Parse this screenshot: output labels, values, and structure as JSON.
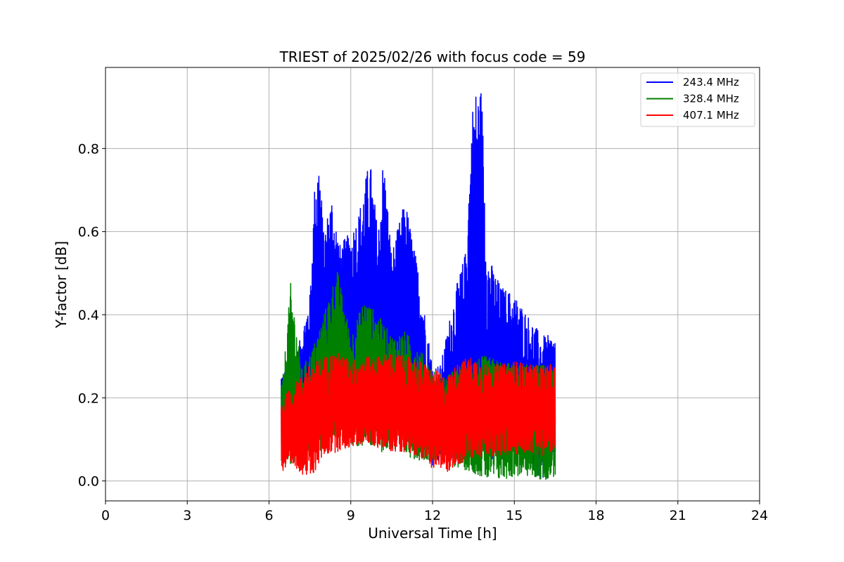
{
  "chart_data": {
    "type": "line",
    "title": "TRIEST of 2025/02/26 with focus code = 59",
    "xlabel": "Universal Time [h]",
    "ylabel": "Y-factor [dB]",
    "xlim": [
      0,
      24
    ],
    "ylim": [
      -0.048,
      0.995
    ],
    "xticks": [
      0,
      3,
      6,
      9,
      12,
      15,
      18,
      21,
      24
    ],
    "yticks": [
      0.0,
      0.2,
      0.4,
      0.6,
      0.8
    ],
    "ytick_labels": [
      "0.0",
      "0.2",
      "0.4",
      "0.6",
      "0.8"
    ],
    "grid": true,
    "legend_position": "top-right",
    "series": [
      {
        "name": "243.4 MHz",
        "color": "#0000ff",
        "x_range": [
          6.45,
          16.5
        ],
        "envelope_x": [
          6.5,
          7.0,
          7.5,
          7.7,
          7.85,
          8.0,
          8.3,
          8.6,
          9.0,
          9.3,
          9.7,
          10.0,
          10.2,
          10.5,
          11.0,
          11.5,
          12.0,
          12.3,
          12.8,
          13.2,
          13.5,
          13.8,
          14.0,
          14.5,
          15.0,
          15.5,
          16.0,
          16.5
        ],
        "max_values": [
          0.26,
          0.3,
          0.45,
          0.75,
          0.78,
          0.6,
          0.69,
          0.57,
          0.6,
          0.65,
          0.78,
          0.6,
          0.79,
          0.55,
          0.68,
          0.5,
          0.28,
          0.28,
          0.45,
          0.55,
          0.94,
          0.95,
          0.55,
          0.47,
          0.45,
          0.4,
          0.35,
          0.35
        ],
        "min_values": [
          0.12,
          0.1,
          0.1,
          0.14,
          0.14,
          0.13,
          0.14,
          0.14,
          0.13,
          0.15,
          0.14,
          0.13,
          0.13,
          0.13,
          0.12,
          0.12,
          0.03,
          0.04,
          0.05,
          0.06,
          0.03,
          0.04,
          0.05,
          0.04,
          0.04,
          0.04,
          0.0,
          0.05
        ]
      },
      {
        "name": "328.4 MHz",
        "color": "#008000",
        "x_range": [
          6.45,
          16.5
        ],
        "envelope_x": [
          6.5,
          6.8,
          7.2,
          7.6,
          8.0,
          8.5,
          9.0,
          9.5,
          10.0,
          10.5,
          11.0,
          11.5,
          12.0,
          12.5,
          13.0,
          13.5,
          14.0,
          14.5,
          15.0,
          15.5,
          16.0,
          16.5
        ],
        "max_values": [
          0.24,
          0.48,
          0.27,
          0.32,
          0.4,
          0.51,
          0.35,
          0.44,
          0.4,
          0.35,
          0.36,
          0.32,
          0.27,
          0.25,
          0.28,
          0.3,
          0.3,
          0.29,
          0.28,
          0.28,
          0.28,
          0.28
        ],
        "min_values": [
          0.04,
          0.03,
          0.05,
          0.06,
          0.08,
          0.1,
          0.08,
          0.08,
          0.07,
          0.07,
          0.06,
          0.05,
          0.05,
          0.04,
          0.03,
          0.02,
          0.0,
          0.0,
          0.01,
          0.01,
          0.0,
          0.01
        ]
      },
      {
        "name": "407.1 MHz",
        "color": "#ff0000",
        "x_range": [
          6.45,
          16.5
        ],
        "envelope_x": [
          6.5,
          7.0,
          7.5,
          8.0,
          8.5,
          9.0,
          9.5,
          10.0,
          10.5,
          11.0,
          11.5,
          12.0,
          12.5,
          13.0,
          13.5,
          14.0,
          14.5,
          15.0,
          15.5,
          16.0,
          16.5
        ],
        "max_values": [
          0.2,
          0.24,
          0.28,
          0.3,
          0.31,
          0.29,
          0.3,
          0.3,
          0.31,
          0.3,
          0.29,
          0.27,
          0.25,
          0.29,
          0.3,
          0.28,
          0.28,
          0.29,
          0.28,
          0.28,
          0.28
        ],
        "min_values": [
          0.02,
          0.03,
          0.0,
          0.06,
          0.07,
          0.08,
          0.09,
          0.08,
          0.07,
          0.07,
          0.06,
          0.03,
          0.02,
          0.04,
          0.05,
          0.06,
          0.06,
          0.06,
          0.07,
          0.06,
          0.07
        ]
      }
    ]
  }
}
